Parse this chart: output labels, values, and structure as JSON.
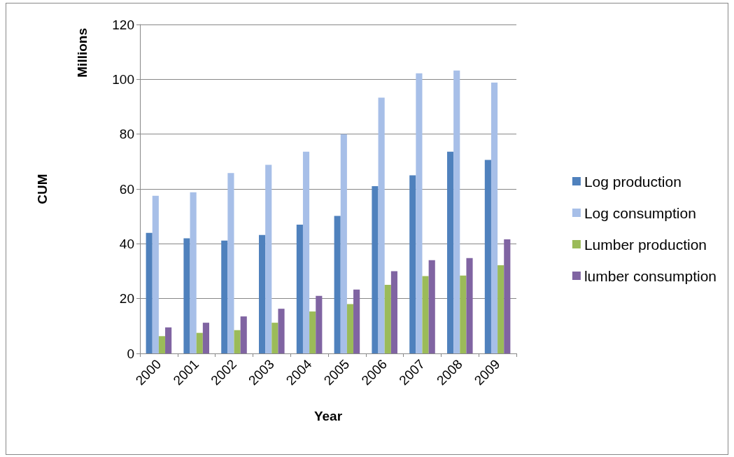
{
  "chart_data": {
    "type": "bar",
    "xlabel": "Year",
    "ylabel": "CUM",
    "annotations": [
      "Millions"
    ],
    "categories": [
      "2000",
      "2001",
      "2002",
      "2003",
      "2004",
      "2005",
      "2006",
      "2007",
      "2008",
      "2009"
    ],
    "series": [
      {
        "name": "Log production",
        "color": "#4f81bd",
        "values": [
          44,
          42,
          41.2,
          43.2,
          47,
          50.2,
          61,
          65,
          73.6,
          70.6
        ]
      },
      {
        "name": "Log consumption",
        "color": "#a7bfe8",
        "values": [
          57.5,
          58.8,
          65.8,
          68.8,
          73.6,
          80,
          93.3,
          102.2,
          103.2,
          98.8
        ]
      },
      {
        "name": "Lumber production",
        "color": "#9bbb59",
        "values": [
          6.3,
          7.5,
          8.5,
          11.2,
          15.3,
          18,
          25,
          28.2,
          28.4,
          32.2
        ]
      },
      {
        "name": "lumber consumption",
        "color": "#8064a2",
        "values": [
          9.5,
          11.2,
          13.5,
          16.3,
          21,
          23.3,
          30,
          34,
          34.8,
          41.6
        ]
      }
    ],
    "ylim": [
      0,
      120
    ],
    "yticks": [
      0,
      20,
      40,
      60,
      80,
      100,
      120
    ],
    "grid": "y",
    "legend": "right"
  }
}
